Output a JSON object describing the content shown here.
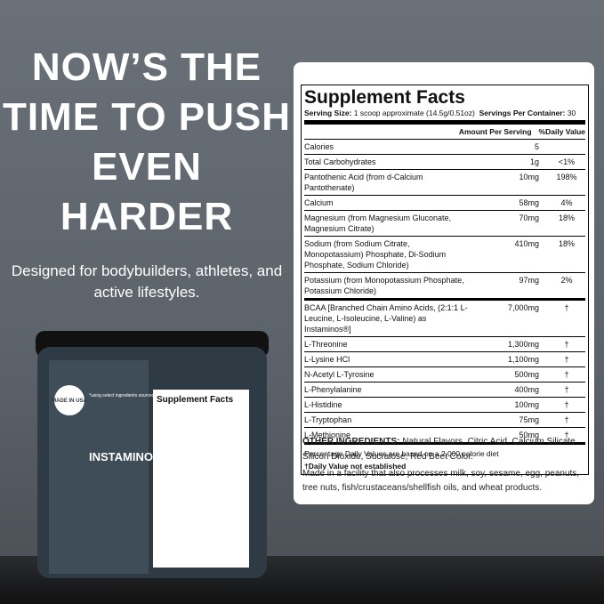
{
  "headline": "NOW’S THE TIME TO PUSH EVEN HARDER",
  "subtitle": "Designed for bodybuilders, athletes, and active lifestyles.",
  "jar": {
    "badge": "MADE IN USA",
    "badge_text": "*using select ingredients sourced globally",
    "brand": "INSTAMINOS",
    "label_title": "Supplement Facts"
  },
  "supplement_facts": {
    "title": "Supplement Facts",
    "serving_size_label": "Serving Size:",
    "serving_size": "1 scoop approximate (14.5g/0.51oz)",
    "servings_label": "Servings Per Container:",
    "servings": "30",
    "amount_header": "Amount Per Serving",
    "dv_header": "%Daily Value",
    "rows": [
      {
        "name": "Calories",
        "amount": "5",
        "dv": ""
      },
      {
        "name": "Total Carbohydrates",
        "amount": "1g",
        "dv": "<1%"
      },
      {
        "name": "Pantothenic Acid (from d-Calcium Pantothenate)",
        "amount": "10mg",
        "dv": "198%"
      },
      {
        "name": "Calcium",
        "amount": "58mg",
        "dv": "4%"
      },
      {
        "name": "Magnesium (from Magnesium Gluconate, Magnesium Citrate)",
        "amount": "70mg",
        "dv": "18%"
      },
      {
        "name": "Sodium (from Sodium Citrate, Monopotassium) Phosphate, Di-Sodium Phosphate, Sodium Chloride)",
        "amount": "410mg",
        "dv": "18%"
      },
      {
        "name": "Potassium (from Monopotassium Phosphate, Potassium Chloride)",
        "amount": "97mg",
        "dv": "2%"
      },
      {
        "name": "BCAA [Branched Chain Amino Acids, (2:1:1 L-Leucine, L-Isoleucine, L-Valine) as Instaminos®]",
        "amount": "7,000mg",
        "dv": "†"
      },
      {
        "name": "L-Threonine",
        "amount": "1,300mg",
        "dv": "†"
      },
      {
        "name": "L-Lysine HCl",
        "amount": "1,100mg",
        "dv": "†"
      },
      {
        "name": "N-Acetyl L-Tyrosine",
        "amount": "500mg",
        "dv": "†"
      },
      {
        "name": "L-Phenylalanine",
        "amount": "400mg",
        "dv": "†"
      },
      {
        "name": "L-Histidine",
        "amount": "100mg",
        "dv": "†"
      },
      {
        "name": "L-Tryptophan",
        "amount": "75mg",
        "dv": "†"
      },
      {
        "name": "L-Methionine",
        "amount": "50mg",
        "dv": "†"
      }
    ],
    "footnote": "Percentage Daily Values are based on a 2,000 calorie diet",
    "dagger_note": "†Daily Value not established"
  },
  "other_ingredients": {
    "label": "OTHER INGREDIENTS:",
    "text": "Natural Flavors, Citric Acid, Calcium Silicate, Silicon Dioxide, Sucralose, Red Beet Color."
  },
  "allergen_note": "Made in a facility that also processes milk, soy, sesame, egg, peanuts, tree nuts, fish/crustaceans/shellfish oils, and wheat products."
}
